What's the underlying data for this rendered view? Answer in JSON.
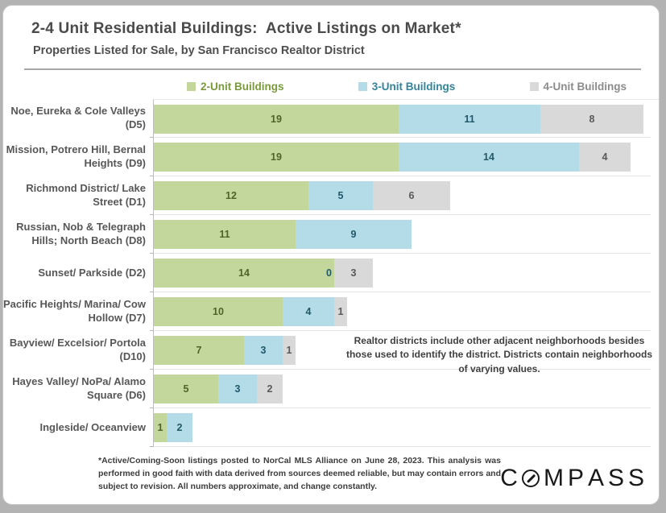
{
  "slide": {
    "title": "2-4 Unit Residential Buildings:  Active Listings on Market*",
    "subtitle": "Properties Listed for Sale, by San Francisco Realtor District",
    "annotation": "Realtor districts include other adjacent neighborhoods besides those used to identify the district. Districts contain neighborhoods of varying values.",
    "footnote": "*Active/Coming-Soon listings posted to NorCal MLS Alliance on June 28, 2023. This analysis was performed in good faith with data derived from sources deemed reliable, but may contain errors and subject to revision. All numbers approximate, and change constantly.",
    "logo_text": "COMPASS",
    "logo_color": "#191919"
  },
  "chart_data": {
    "type": "bar",
    "orientation": "horizontal",
    "stacked": true,
    "value_labels": true,
    "legend_position": "top",
    "grid": "category-separators",
    "xlim": [
      0,
      38
    ],
    "categories": [
      "Noe, Eureka & Cole Valleys (D5)",
      "Mission, Potrero Hill, Bernal Heights (D9)",
      "Richmond District/ Lake Street (D1)",
      "Russian, Nob & Telegraph Hills; North Beach (D8)",
      "Sunset/ Parkside (D2)",
      "Pacific Heights/ Marina/ Cow Hollow (D7)",
      "Bayview/ Excelsior/ Portola (D10)",
      "Hayes Valley/ NoPa/ Alamo Square (D6)",
      "Ingleside/ Oceanview"
    ],
    "series": [
      {
        "name": "2-Unit Buildings",
        "color": "#c3d69b",
        "label_color": "#4f6228",
        "legend_text_color": "#7a9a3d",
        "values": [
          19,
          19,
          12,
          11,
          14,
          10,
          7,
          5,
          1
        ]
      },
      {
        "name": "3-Unit Buildings",
        "color": "#b4dce8",
        "label_color": "#215968",
        "legend_text_color": "#31849b",
        "values": [
          11,
          14,
          5,
          9,
          0,
          4,
          3,
          3,
          2
        ]
      },
      {
        "name": "4-Unit Buildings",
        "color": "#d9d9d9",
        "label_color": "#595959",
        "legend_text_color": "#8c8c8c",
        "values": [
          8,
          4,
          6,
          null,
          3,
          1,
          1,
          2,
          null
        ]
      }
    ]
  }
}
